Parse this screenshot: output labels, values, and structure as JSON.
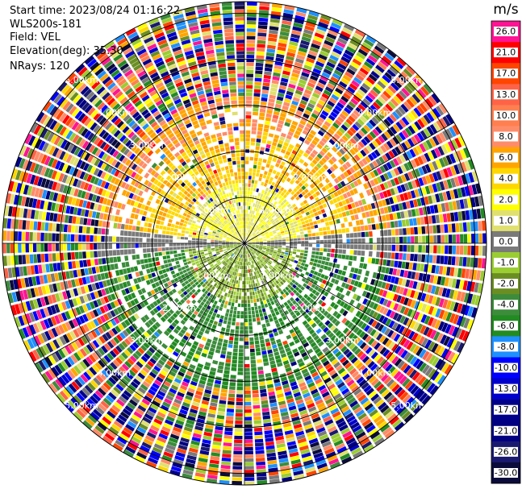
{
  "metadata": {
    "start_time": "Start time: 2023/08/24 01:16:22",
    "instrument": "WLS200s-181",
    "field": "Field: VEL",
    "elevation": "Elevation(deg): 35.30",
    "nrays": "NRays: 120"
  },
  "chart_data": {
    "type": "ppi_scan",
    "field": "VEL",
    "units": "m/s",
    "nrays": 120,
    "range_rings_km": [
      1,
      2,
      3,
      4,
      5
    ],
    "ring_label_text": {
      "1": "1.00km",
      "2": "2.00km",
      "3": "3.00km",
      "4": "4.00km",
      "5": "5.00km"
    },
    "colorbar": {
      "unit": "m/s",
      "levels": [
        {
          "label": "26.0",
          "color": "#ff1493"
        },
        {
          "label": "21.0",
          "color": "#ff0000"
        },
        {
          "label": "17.0",
          "color": "#ff4500"
        },
        {
          "label": "13.0",
          "color": "#ff6347"
        },
        {
          "label": "10.0",
          "color": "#ff7f50"
        },
        {
          "label": "8.0",
          "color": "#ff8c69"
        },
        {
          "label": "6.0",
          "color": "#ffa500"
        },
        {
          "label": "4.0",
          "color": "#ffd700"
        },
        {
          "label": "2.0",
          "color": "#ffff00"
        },
        {
          "label": "1.0",
          "color": "#e0e070"
        },
        {
          "label": "0.0",
          "color": "#7a7a7a"
        },
        {
          "label": "-1.0",
          "color": "#9acd32"
        },
        {
          "label": "-2.0",
          "color": "#6b8e23"
        },
        {
          "label": "-4.0",
          "color": "#3c8c3c"
        },
        {
          "label": "-6.0",
          "color": "#228b22"
        },
        {
          "label": "-8.0",
          "color": "#1e90ff"
        },
        {
          "label": "-10.0",
          "color": "#0000ff"
        },
        {
          "label": "-13.0",
          "color": "#0000cd"
        },
        {
          "label": "-17.0",
          "color": "#00008b"
        },
        {
          "label": "-21.0",
          "color": "#000080"
        },
        {
          "label": "-26.0",
          "color": "#191970"
        },
        {
          "label": "-30.0",
          "color": "#0b0b3b"
        }
      ]
    }
  }
}
